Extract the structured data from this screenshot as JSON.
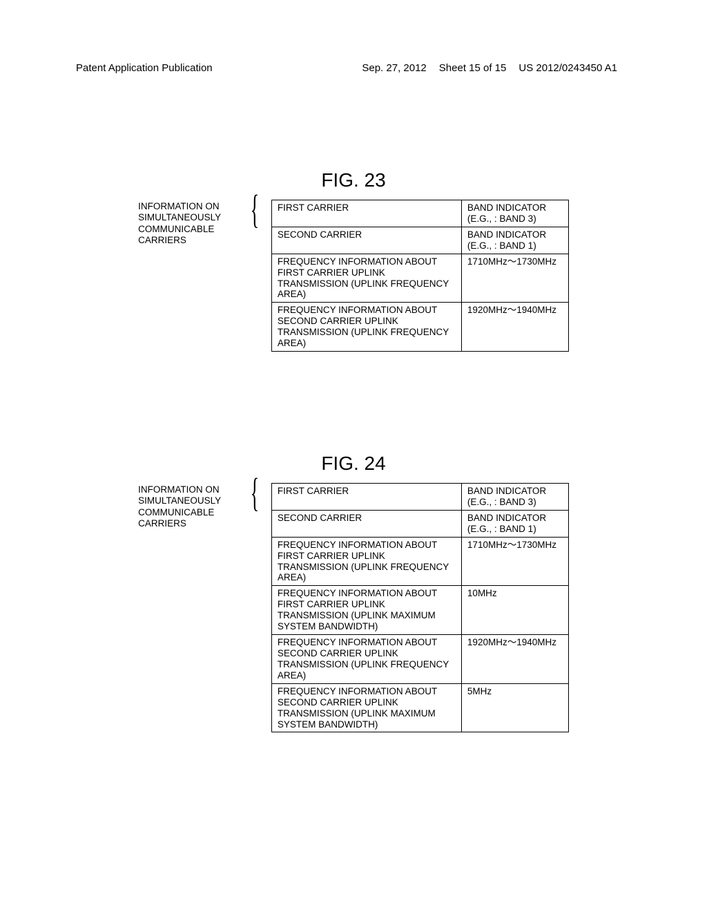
{
  "header": {
    "left": "Patent Application Publication",
    "date": "Sep. 27, 2012",
    "sheet": "Sheet 15 of 15",
    "pubno": "US 2012/0243450 A1"
  },
  "fig23": {
    "title": "FIG. 23",
    "side_label": "INFORMATION ON SIMULTANEOUSLY COMMUNICABLE CARRIERS",
    "rows": [
      {
        "desc": "FIRST CARRIER",
        "val": "BAND INDICATOR (E.G., : BAND 3)"
      },
      {
        "desc": "SECOND CARRIER",
        "val": "BAND INDICATOR (E.G., : BAND 1)"
      },
      {
        "desc": "FREQUENCY INFORMATION ABOUT FIRST CARRIER UPLINK TRANSMISSION (UPLINK FREQUENCY AREA)",
        "val": "1710MHz～1730MHz"
      },
      {
        "desc": "FREQUENCY INFORMATION ABOUT SECOND CARRIER UPLINK TRANSMISSION (UPLINK FREQUENCY AREA)",
        "val": "1920MHz～1940MHz"
      }
    ]
  },
  "fig24": {
    "title": "FIG. 24",
    "side_label": "INFORMATION ON SIMULTANEOUSLY COMMUNICABLE CARRIERS",
    "rows": [
      {
        "desc": "FIRST CARRIER",
        "val": "BAND INDICATOR (E.G., : BAND 3)"
      },
      {
        "desc": "SECOND CARRIER",
        "val": "BAND INDICATOR (E.G., : BAND 1)"
      },
      {
        "desc": "FREQUENCY INFORMATION ABOUT FIRST CARRIER UPLINK TRANSMISSION (UPLINK FREQUENCY AREA)",
        "val": "1710MHz～1730MHz"
      },
      {
        "desc": "FREQUENCY INFORMATION ABOUT FIRST CARRIER UPLINK TRANSMISSION (UPLINK MAXIMUM SYSTEM BANDWIDTH)",
        "val": "10MHz"
      },
      {
        "desc": "FREQUENCY INFORMATION ABOUT SECOND CARRIER UPLINK TRANSMISSION (UPLINK FREQUENCY AREA)",
        "val": "1920MHz～1940MHz"
      },
      {
        "desc": "FREQUENCY INFORMATION ABOUT SECOND CARRIER UPLINK TRANSMISSION (UPLINK MAXIMUM SYSTEM BANDWIDTH)",
        "val": "5MHz"
      }
    ]
  }
}
